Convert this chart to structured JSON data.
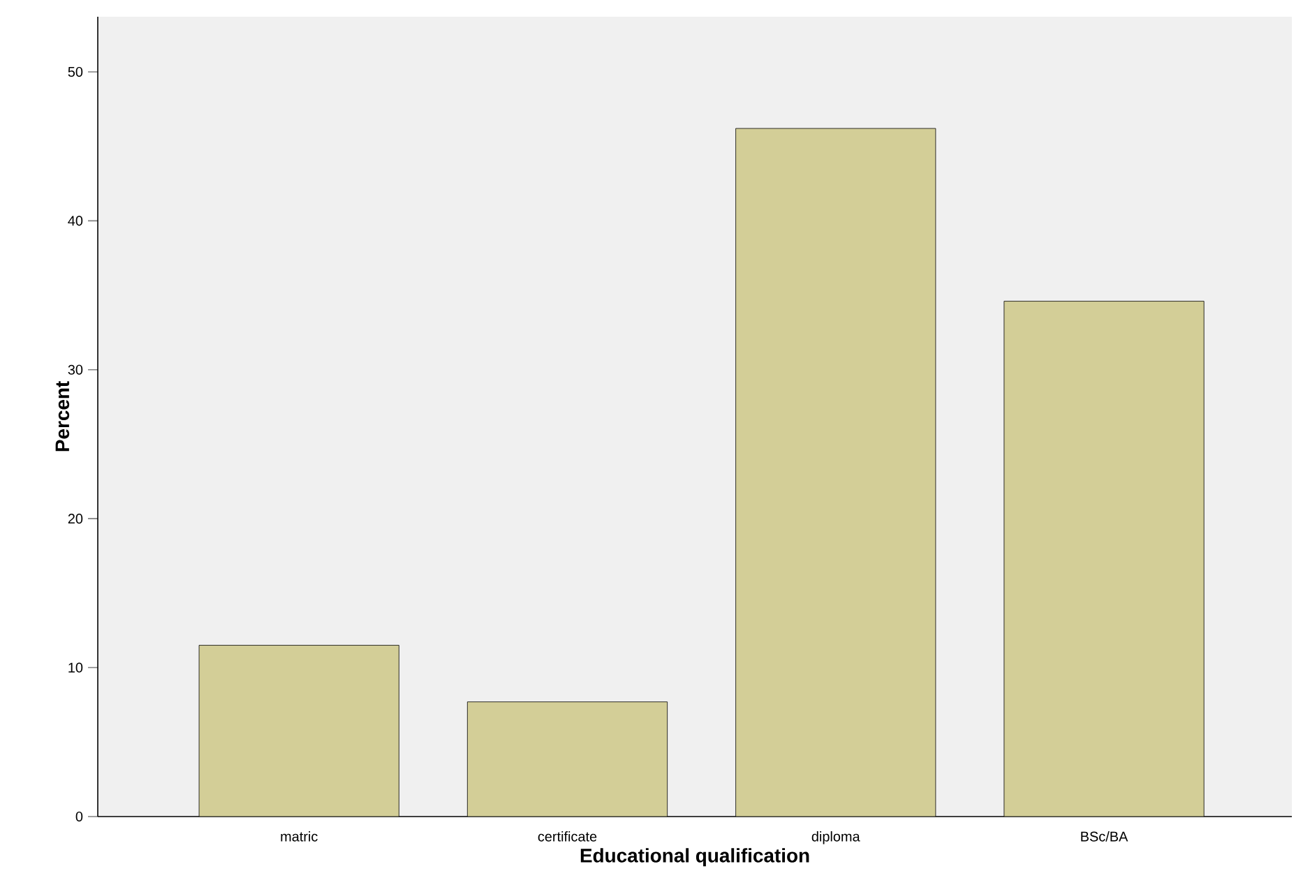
{
  "chart_data": {
    "type": "bar",
    "xlabel": "Educational qualification",
    "ylabel": "Percent",
    "categories": [
      "matric",
      "certificate",
      "diploma",
      "BSc/BA"
    ],
    "values": [
      11.5,
      7.7,
      46.2,
      34.6
    ],
    "color": "#d3ce97",
    "ylim": [
      0,
      53.7
    ],
    "yticks": [
      0,
      10,
      20,
      30,
      40,
      50
    ]
  }
}
